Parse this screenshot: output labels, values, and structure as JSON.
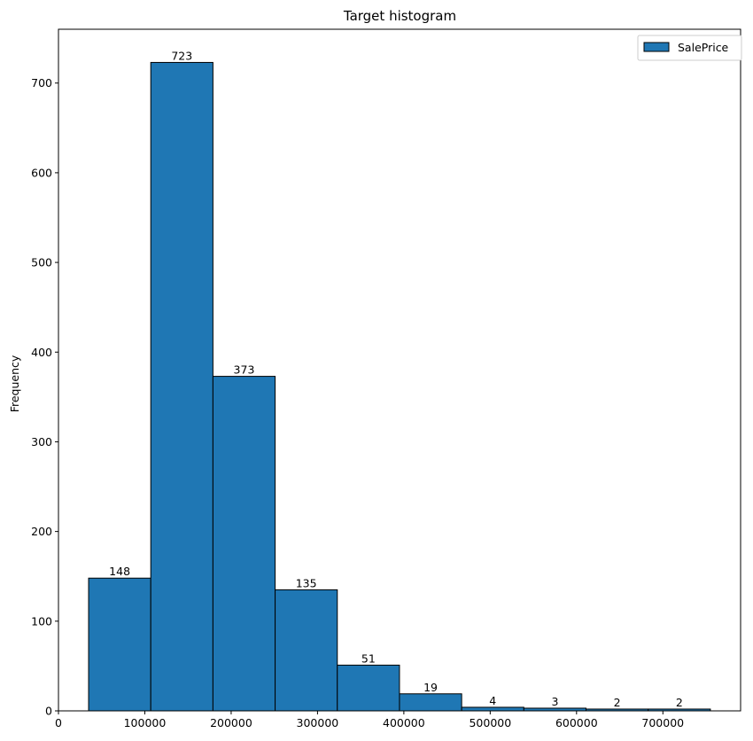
{
  "chart_data": {
    "type": "bar",
    "title": "Target histogram",
    "xlabel": "",
    "ylabel": "Frequency",
    "xlim": [
      0,
      790000
    ],
    "ylim": [
      0,
      760
    ],
    "x_ticks": [
      0,
      100000,
      200000,
      300000,
      400000,
      500000,
      600000,
      700000
    ],
    "y_ticks": [
      0,
      100,
      200,
      300,
      400,
      500,
      600,
      700
    ],
    "bin_edges": [
      34900,
      106910,
      178920,
      250930,
      322940,
      394950,
      466960,
      538970,
      610980,
      682990,
      755000
    ],
    "values": [
      148,
      723,
      373,
      135,
      51,
      19,
      4,
      3,
      2,
      2
    ],
    "series": [
      {
        "name": "SalePrice",
        "values": [
          148,
          723,
          373,
          135,
          51,
          19,
          4,
          3,
          2,
          2
        ]
      }
    ],
    "legend": {
      "placement": "top-right",
      "entries": [
        "SalePrice"
      ]
    },
    "grid": false,
    "colors": {
      "bar_fill": "#1f77b4",
      "bar_edge": "#000000"
    }
  }
}
